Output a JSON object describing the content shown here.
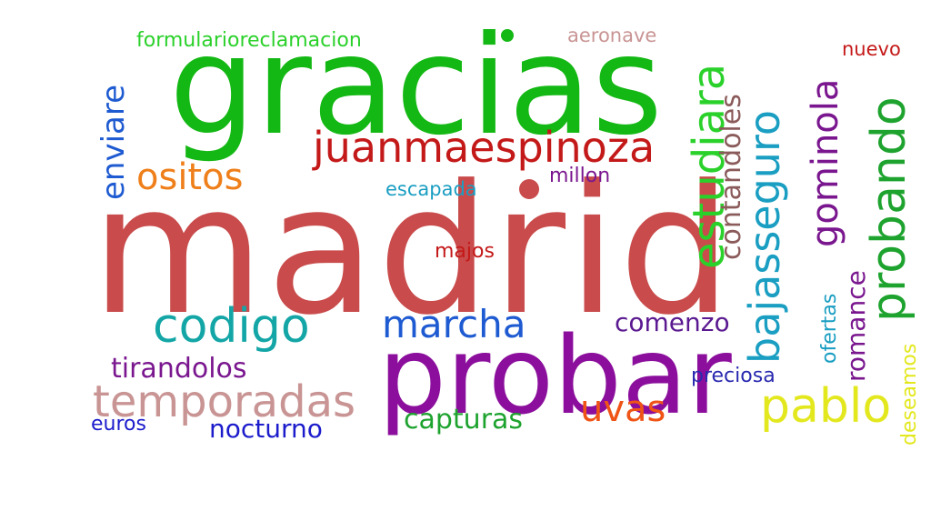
{
  "cloud": {
    "words": [
      {
        "id": "madrid",
        "text": "madrid",
        "color": "#c94b4b"
      },
      {
        "id": "gracias",
        "text": "gracias",
        "color": "#14b814"
      },
      {
        "id": "probar",
        "text": "probar",
        "color": "#8b0f9c"
      },
      {
        "id": "juanmaespinoza",
        "text": "juanmaespinoza",
        "color": "#c41919"
      },
      {
        "id": "temporadas",
        "text": "temporadas",
        "color": "#c99494"
      },
      {
        "id": "codigo",
        "text": "codigo",
        "color": "#14a6a6"
      },
      {
        "id": "marcha",
        "text": "marcha",
        "color": "#1e5ad1"
      },
      {
        "id": "ositos",
        "text": "ositos",
        "color": "#ef7f1a"
      },
      {
        "id": "pablo",
        "text": "pablo",
        "color": "#e3e81e"
      },
      {
        "id": "uvas",
        "text": "uvas",
        "color": "#ef5416"
      },
      {
        "id": "tirandolos",
        "text": "tirandolos",
        "color": "#7a178f"
      },
      {
        "id": "capturas",
        "text": "capturas",
        "color": "#1ea32f"
      },
      {
        "id": "nocturno",
        "text": "nocturno",
        "color": "#1c1ccc"
      },
      {
        "id": "euros",
        "text": "euros",
        "color": "#1c1ccc"
      },
      {
        "id": "comenzo",
        "text": "comenzo",
        "color": "#5b1a91"
      },
      {
        "id": "preciosa",
        "text": "preciosa",
        "color": "#2a2ab0"
      },
      {
        "id": "formularioreclamacion",
        "text": "formularioreclamacion",
        "color": "#2bd12b"
      },
      {
        "id": "aeronave",
        "text": "aeronave",
        "color": "#c99494"
      },
      {
        "id": "nuevo",
        "text": "nuevo",
        "color": "#c41919"
      },
      {
        "id": "escapada",
        "text": "escapada",
        "color": "#1a9ec2"
      },
      {
        "id": "millon",
        "text": "millon",
        "color": "#7a178f"
      },
      {
        "id": "majos",
        "text": "majos",
        "color": "#c41919"
      },
      {
        "id": "enviare",
        "text": "enviare",
        "color": "#1e5ad1"
      },
      {
        "id": "estudiara",
        "text": "estudiara",
        "color": "#2bd12b"
      },
      {
        "id": "contandoles",
        "text": "contandoles",
        "color": "#8b5a5a"
      },
      {
        "id": "bajasseguro",
        "text": "bajasseguro",
        "color": "#1a9ec2"
      },
      {
        "id": "gominola",
        "text": "gominola",
        "color": "#7a178f"
      },
      {
        "id": "probando",
        "text": "probando",
        "color": "#1ea32f"
      },
      {
        "id": "romance",
        "text": "romance",
        "color": "#7a178f"
      },
      {
        "id": "ofertas",
        "text": "ofertas",
        "color": "#1a9ec2"
      },
      {
        "id": "deseamos",
        "text": "deseamos",
        "color": "#e3e81e"
      }
    ]
  }
}
